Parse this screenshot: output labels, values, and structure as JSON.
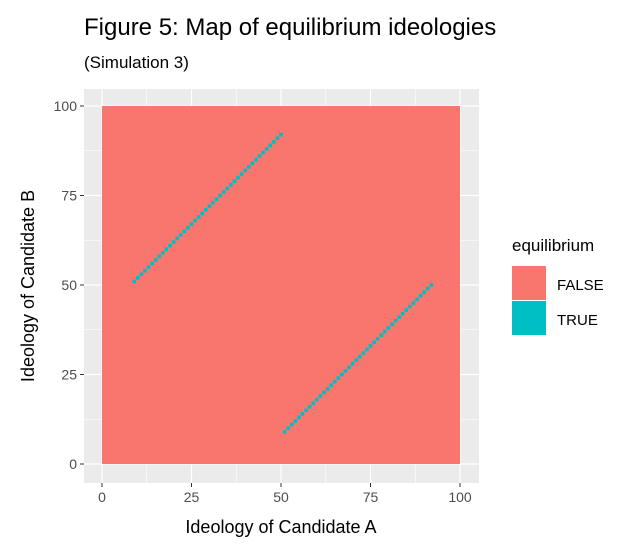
{
  "title": "Figure 5: Map of equilibrium ideologies",
  "subtitle": "(Simulation 3)",
  "chart_data": {
    "type": "heatmap",
    "title": "Figure 5: Map of equilibrium ideologies",
    "subtitle": "(Simulation 3)",
    "xlabel": "Ideology of Candidate A",
    "ylabel": "Ideology of Candidate B",
    "xlim": [
      0,
      100
    ],
    "ylim": [
      0,
      100
    ],
    "x_ticks": [
      "0",
      "25",
      "50",
      "75",
      "100"
    ],
    "y_ticks": [
      "0",
      "25",
      "50",
      "75",
      "100"
    ],
    "grid": true,
    "legend": {
      "title": "equilibrium",
      "placement": "right",
      "entries": [
        {
          "label": "FALSE",
          "color": "#F8766D"
        },
        {
          "label": "TRUE",
          "color": "#00BFC4"
        }
      ]
    },
    "fill_default": "FALSE",
    "series": [
      {
        "value": "TRUE",
        "x_range": [
          9,
          50
        ],
        "y_range": [
          51,
          92
        ],
        "relation": "y = x + 42"
      },
      {
        "value": "TRUE",
        "x_range": [
          51,
          92
        ],
        "y_range": [
          9,
          50
        ],
        "relation": "y = x - 42"
      }
    ]
  }
}
